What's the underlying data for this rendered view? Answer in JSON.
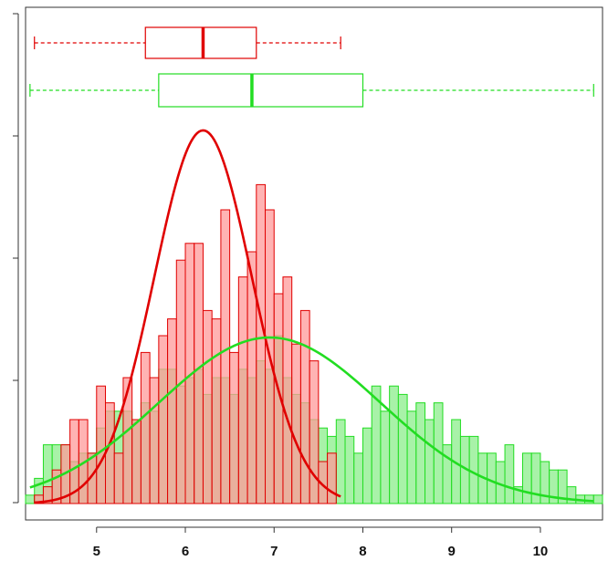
{
  "chart_data": {
    "type": "histogram",
    "xlim": [
      4.2,
      10.7
    ],
    "x_ticks": [
      5,
      6,
      7,
      8,
      9,
      10
    ],
    "x_tick_labels": [
      "5",
      "6",
      "7",
      "8",
      "9",
      "10"
    ],
    "y_tick_count": 5,
    "grid": false,
    "bin_width": 0.1,
    "series": [
      {
        "color": "#e00000",
        "fill": "#ff9a9a",
        "bins_start": 4.3,
        "counts": [
          1,
          2,
          4,
          7,
          10,
          10,
          6,
          14,
          12,
          6,
          15,
          10,
          18,
          15,
          20,
          22,
          29,
          31,
          31,
          23,
          22,
          35,
          18,
          27,
          30,
          38,
          35,
          25,
          27,
          19,
          23,
          17,
          5,
          6
        ],
        "density_curve": {
          "mean": 6.2,
          "sd": 0.55
        },
        "boxplot": {
          "min": 4.3,
          "q1": 5.55,
          "median": 6.2,
          "q3": 6.8,
          "max": 7.75
        }
      },
      {
        "color": "#22dd22",
        "fill": "#99f099",
        "bins_start": 4.2,
        "counts": [
          1,
          3,
          7,
          7,
          7,
          5,
          6,
          6,
          9,
          11,
          11,
          11,
          10,
          12,
          11,
          16,
          16,
          14,
          15,
          16,
          13,
          15,
          15,
          13,
          16,
          15,
          17,
          16,
          20,
          15,
          13,
          12,
          10,
          9,
          8,
          10,
          8,
          6,
          9,
          14,
          11,
          14,
          13,
          11,
          12,
          10,
          12,
          7,
          10,
          8,
          8,
          6,
          6,
          5,
          7,
          2,
          6,
          6,
          5,
          4,
          4,
          2,
          1,
          1,
          1
        ],
        "density_curve": {
          "mean": 6.95,
          "sd": 1.25
        },
        "boxplot": {
          "min": 4.25,
          "q1": 5.7,
          "median": 6.75,
          "q3": 8.0,
          "max": 10.6
        }
      }
    ]
  }
}
